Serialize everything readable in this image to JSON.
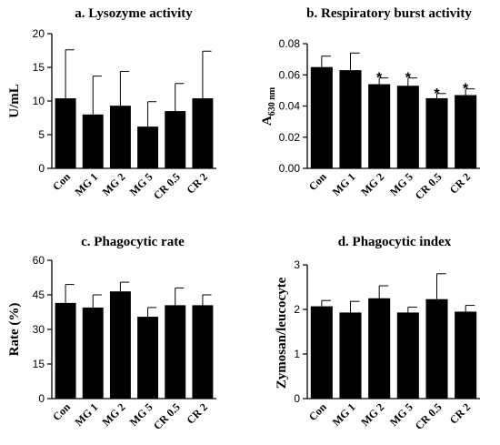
{
  "chart_data": [
    {
      "type": "bar",
      "title": "a. Lysozyme activity",
      "ylabel": "U/mL",
      "ylim": [
        0,
        20
      ],
      "yticks": [
        "0",
        "5",
        "10",
        "15",
        "20"
      ],
      "categories": [
        "Con",
        "MG 1",
        "MG 2",
        "MG 5",
        "CR 0.5",
        "CR 2"
      ],
      "values": [
        10.4,
        8.0,
        9.3,
        6.2,
        8.5,
        10.4
      ],
      "errors": [
        7.2,
        5.7,
        5.1,
        3.7,
        4.1,
        7.0
      ],
      "annotations": [
        "",
        "",
        "",
        "",
        "",
        ""
      ]
    },
    {
      "type": "bar",
      "title": "b. Respiratory burst activity",
      "ylabel": "A",
      "ylabel_sub": "630 nm",
      "ylim": [
        0,
        0.08
      ],
      "yticks": [
        "0.00",
        "0.02",
        "0.04",
        "0.06",
        "0.08"
      ],
      "categories": [
        "Con",
        "MG 1",
        "MG 2",
        "MG 5",
        "CR 0.5",
        "CR 2"
      ],
      "values": [
        0.065,
        0.063,
        0.054,
        0.053,
        0.045,
        0.047
      ],
      "errors": [
        0.007,
        0.011,
        0.004,
        0.005,
        0.003,
        0.004
      ],
      "annotations": [
        "",
        "",
        "*",
        "*",
        "*",
        "*"
      ]
    },
    {
      "type": "bar",
      "title": "c. Phagocytic rate",
      "ylabel": "Rate (%)",
      "ylim": [
        0,
        60
      ],
      "yticks": [
        "0",
        "15",
        "30",
        "45",
        "60"
      ],
      "categories": [
        "Con",
        "MG 1",
        "MG 2",
        "MG 5",
        "CR 0.5",
        "CR 2"
      ],
      "values": [
        41.5,
        39.5,
        46.5,
        35.5,
        40.5,
        40.5
      ],
      "errors": [
        8.0,
        5.5,
        4.0,
        4.0,
        7.5,
        4.5
      ],
      "annotations": [
        "",
        "",
        "",
        "",
        "",
        ""
      ]
    },
    {
      "type": "bar",
      "title": "d. Phagocytic index",
      "ylabel": "Zymosan/leucocyte",
      "ylim": [
        0,
        3
      ],
      "yticks": [
        "0",
        "1",
        "2",
        "3"
      ],
      "categories": [
        "Con",
        "MG 1",
        "MG 2",
        "MG 5",
        "CR 0.5",
        "CR 2"
      ],
      "values": [
        2.07,
        1.93,
        2.25,
        1.93,
        2.23,
        1.95
      ],
      "errors": [
        0.13,
        0.25,
        0.28,
        0.12,
        0.57,
        0.14
      ],
      "annotations": [
        "",
        "",
        "",
        "",
        "",
        ""
      ]
    }
  ]
}
